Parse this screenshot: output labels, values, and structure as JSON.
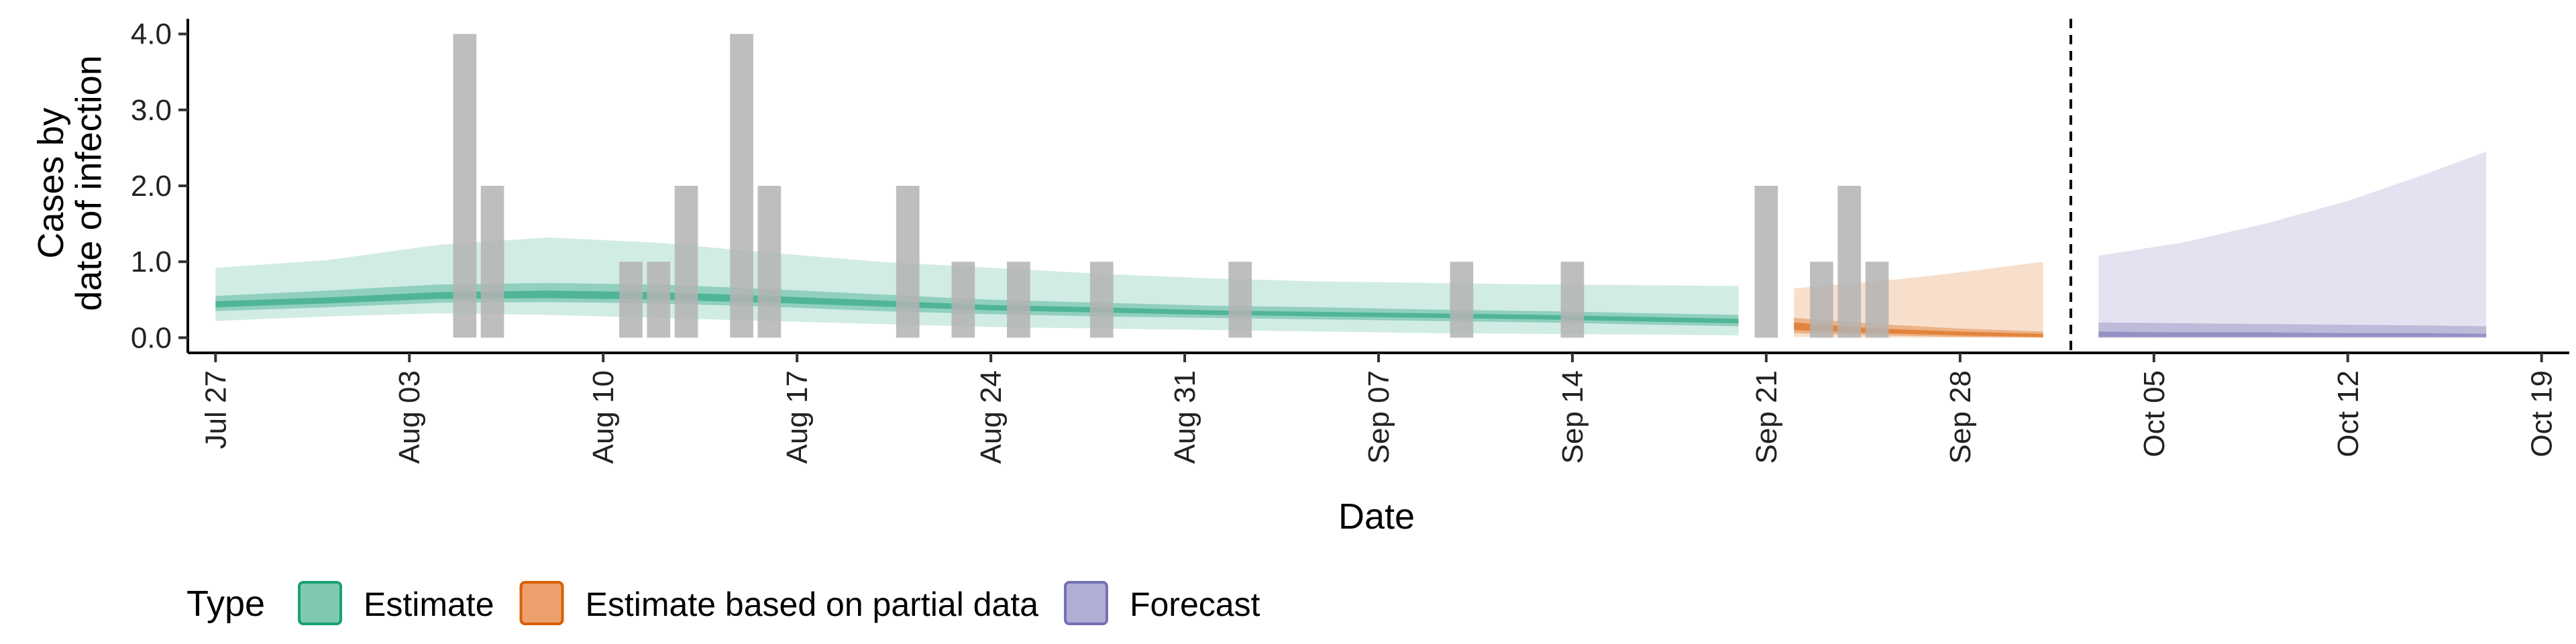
{
  "chart_data": {
    "type": "area",
    "xlabel": "Date",
    "ylabel_lines": [
      "Cases by",
      "date of infection"
    ],
    "x_start": "2020-07-26",
    "x_end": "2020-10-20",
    "ylim": [
      -0.2,
      4.2
    ],
    "yticks": [
      0.0,
      1.0,
      2.0,
      3.0,
      4.0
    ],
    "ytick_labels": [
      "0.0",
      "1.0",
      "2.0",
      "3.0",
      "4.0"
    ],
    "xticks": [
      {
        "date": "2020-07-27",
        "label": "Jul 27"
      },
      {
        "date": "2020-08-03",
        "label": "Aug 03"
      },
      {
        "date": "2020-08-10",
        "label": "Aug 10"
      },
      {
        "date": "2020-08-17",
        "label": "Aug 17"
      },
      {
        "date": "2020-08-24",
        "label": "Aug 24"
      },
      {
        "date": "2020-08-31",
        "label": "Aug 31"
      },
      {
        "date": "2020-09-07",
        "label": "Sep 07"
      },
      {
        "date": "2020-09-14",
        "label": "Sep 14"
      },
      {
        "date": "2020-09-21",
        "label": "Sep 21"
      },
      {
        "date": "2020-09-28",
        "label": "Sep 28"
      },
      {
        "date": "2020-10-05",
        "label": "Oct 05"
      },
      {
        "date": "2020-10-12",
        "label": "Oct 12"
      },
      {
        "date": "2020-10-19",
        "label": "Oct 19"
      }
    ],
    "forecast_date": "2020-10-02",
    "grid": false,
    "legend": {
      "title": "Type",
      "position": "bottom",
      "entries": [
        {
          "label": "Estimate",
          "fill": "#7fcaae",
          "stroke": "#1b9e77"
        },
        {
          "label": "Estimate based on partial data",
          "fill": "#eda06b",
          "stroke": "#d95f02"
        },
        {
          "label": "Forecast",
          "fill": "#b1aed6",
          "stroke": "#7570b3"
        }
      ]
    },
    "observed_cases": {
      "color": "#b3b3b3",
      "points": [
        {
          "date": "2020-08-05",
          "value": 4
        },
        {
          "date": "2020-08-06",
          "value": 2
        },
        {
          "date": "2020-08-11",
          "value": 1
        },
        {
          "date": "2020-08-12",
          "value": 1
        },
        {
          "date": "2020-08-13",
          "value": 2
        },
        {
          "date": "2020-08-15",
          "value": 4
        },
        {
          "date": "2020-08-16",
          "value": 2
        },
        {
          "date": "2020-08-21",
          "value": 2
        },
        {
          "date": "2020-08-23",
          "value": 1
        },
        {
          "date": "2020-08-25",
          "value": 1
        },
        {
          "date": "2020-08-28",
          "value": 1
        },
        {
          "date": "2020-09-02",
          "value": 1
        },
        {
          "date": "2020-09-10",
          "value": 1
        },
        {
          "date": "2020-09-14",
          "value": 1
        },
        {
          "date": "2020-09-21",
          "value": 2
        },
        {
          "date": "2020-09-23",
          "value": 1
        },
        {
          "date": "2020-09-24",
          "value": 2
        },
        {
          "date": "2020-09-25",
          "value": 1
        }
      ]
    },
    "series": [
      {
        "name": "Estimate",
        "fill": "#1b9e77",
        "dates": [
          "2020-07-27",
          "2020-07-31",
          "2020-08-04",
          "2020-08-08",
          "2020-08-12",
          "2020-08-16",
          "2020-08-20",
          "2020-08-24",
          "2020-08-28",
          "2020-09-01",
          "2020-09-05",
          "2020-09-09",
          "2020-09-13",
          "2020-09-17",
          "2020-09-20"
        ],
        "upper90": [
          0.92,
          1.02,
          1.22,
          1.32,
          1.25,
          1.12,
          1.0,
          0.92,
          0.84,
          0.78,
          0.74,
          0.72,
          0.7,
          0.69,
          0.68
        ],
        "lower90": [
          0.22,
          0.28,
          0.32,
          0.3,
          0.26,
          0.22,
          0.18,
          0.14,
          0.12,
          0.1,
          0.08,
          0.06,
          0.05,
          0.04,
          0.03
        ],
        "upper50": [
          0.55,
          0.62,
          0.7,
          0.72,
          0.7,
          0.64,
          0.57,
          0.5,
          0.46,
          0.42,
          0.4,
          0.37,
          0.35,
          0.32,
          0.3
        ],
        "lower50": [
          0.35,
          0.4,
          0.46,
          0.47,
          0.45,
          0.41,
          0.35,
          0.31,
          0.28,
          0.26,
          0.24,
          0.22,
          0.2,
          0.17,
          0.15
        ],
        "upper20": [
          0.48,
          0.53,
          0.6,
          0.62,
          0.6,
          0.55,
          0.49,
          0.43,
          0.4,
          0.36,
          0.34,
          0.32,
          0.3,
          0.27,
          0.25
        ],
        "lower20": [
          0.4,
          0.45,
          0.51,
          0.52,
          0.5,
          0.46,
          0.41,
          0.36,
          0.33,
          0.3,
          0.28,
          0.26,
          0.24,
          0.21,
          0.19
        ]
      },
      {
        "name": "Estimate based on partial data",
        "fill": "#d95f02",
        "dates": [
          "2020-09-22",
          "2020-09-25",
          "2020-09-28",
          "2020-10-01"
        ],
        "upper90": [
          0.65,
          0.74,
          0.86,
          1.0
        ],
        "lower90": [
          0.01,
          0.0,
          0.0,
          0.0
        ],
        "upper50": [
          0.26,
          0.18,
          0.12,
          0.08
        ],
        "lower50": [
          0.06,
          0.03,
          0.01,
          0.0
        ],
        "upper20": [
          0.2,
          0.12,
          0.08,
          0.05
        ],
        "lower20": [
          0.1,
          0.06,
          0.03,
          0.01
        ]
      },
      {
        "name": "Forecast",
        "fill": "#7570b3",
        "dates": [
          "2020-10-03",
          "2020-10-06",
          "2020-10-09",
          "2020-10-12",
          "2020-10-15",
          "2020-10-17"
        ],
        "upper90": [
          1.08,
          1.25,
          1.5,
          1.8,
          2.18,
          2.45
        ],
        "lower90": [
          0.0,
          0.0,
          0.0,
          0.0,
          0.0,
          0.0
        ],
        "upper50": [
          0.2,
          0.19,
          0.18,
          0.17,
          0.16,
          0.15
        ],
        "lower50": [
          0.0,
          0.0,
          0.0,
          0.0,
          0.0,
          0.0
        ],
        "upper20": [
          0.08,
          0.07,
          0.07,
          0.06,
          0.06,
          0.05
        ],
        "lower20": [
          0.01,
          0.01,
          0.01,
          0.01,
          0.01,
          0.01
        ]
      }
    ]
  }
}
